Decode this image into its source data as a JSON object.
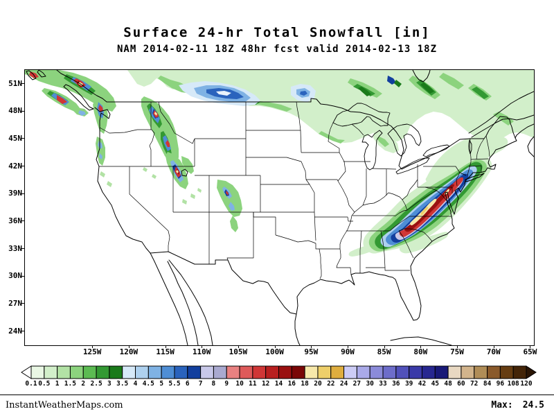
{
  "header": {
    "title": "Surface 24-hr Total Snowfall [in]",
    "subtitle": "NAM 2014-02-11 18Z 48hr fcst valid 2014-02-13 18Z"
  },
  "map": {
    "lat_labels": [
      "51N",
      "48N",
      "45N",
      "42N",
      "39N",
      "36N",
      "33N",
      "30N",
      "27N",
      "24N"
    ],
    "lon_labels": [
      "125W",
      "120W",
      "115W",
      "110W",
      "105W",
      "100W",
      "95W",
      "90W",
      "85W",
      "80W",
      "75W",
      "70W",
      "65W"
    ]
  },
  "colorbar": {
    "units": "in",
    "labels": [
      "0.1",
      "0.5",
      "1",
      "1.5",
      "2",
      "2.5",
      "3",
      "3.5",
      "4",
      "4.5",
      "5",
      "5.5",
      "6",
      "7",
      "8",
      "9",
      "10",
      "11",
      "12",
      "14",
      "16",
      "18",
      "20",
      "22",
      "24",
      "27",
      "30",
      "33",
      "36",
      "39",
      "42",
      "45",
      "48",
      "60",
      "72",
      "84",
      "96",
      "108",
      "120"
    ],
    "cell_colors": [
      "#e9f7e4",
      "#d2efca",
      "#b2e2a5",
      "#8cd37e",
      "#5cbb52",
      "#339933",
      "#1a7a1a",
      "#d6e9f8",
      "#aed1ef",
      "#7fb2e4",
      "#4f8ed5",
      "#2a63bd",
      "#123f9e",
      "#c8c8e8",
      "#a9a9cf",
      "#e88181",
      "#de5a5a",
      "#d03636",
      "#b81f1f",
      "#9a1010",
      "#7a0606",
      "#f7e8aa",
      "#eecf6a",
      "#dfae3f",
      "#ccccf5",
      "#aaaae8",
      "#8b8bd9",
      "#6d6dca",
      "#5151ba",
      "#3a3aa8",
      "#272790",
      "#191977",
      "#e8d8c2",
      "#d2b48c",
      "#b08d57",
      "#8a5a2b",
      "#663d12",
      "#442508"
    ],
    "left_arrow_color": "#ffffff",
    "right_arrow_color": "#2a1504"
  },
  "footer": {
    "site": "InstantWeatherMaps.com",
    "max_label": "Max:",
    "max_value": "24.5"
  }
}
